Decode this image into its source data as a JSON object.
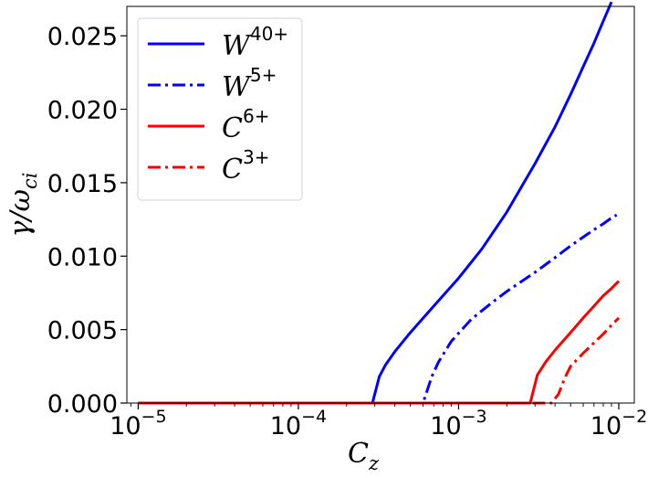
{
  "chart_data": {
    "type": "line",
    "xscale": "log",
    "xlim": [
      8.5e-06,
      0.0125
    ],
    "ylim": [
      0,
      0.027
    ],
    "xlabel": {
      "base": "C",
      "sub": "z"
    },
    "ylabel": {
      "text": "γ/ω",
      "sub": "ci"
    },
    "xticks": [
      {
        "value": 1e-05,
        "base": "10",
        "exp": "−5"
      },
      {
        "value": 0.0001,
        "base": "10",
        "exp": "−4"
      },
      {
        "value": 0.001,
        "base": "10",
        "exp": "−3"
      },
      {
        "value": 0.01,
        "base": "10",
        "exp": "−2"
      }
    ],
    "yticks": [
      "0.000",
      "0.005",
      "0.010",
      "0.015",
      "0.020",
      "0.025"
    ],
    "yticks_values": [
      0,
      0.005,
      0.01,
      0.015,
      0.02,
      0.025
    ],
    "legend_position": "top-left",
    "series": [
      {
        "name": "W",
        "sup": "40+",
        "color": "#0000ff",
        "style": "solid",
        "x": [
          1e-05,
          0.0001,
          0.00029,
          0.00032,
          0.00035,
          0.0004,
          0.0005,
          0.0007,
          0.001,
          0.0014,
          0.002,
          0.003,
          0.004,
          0.005,
          0.006,
          0.007,
          0.008,
          0.009
        ],
        "y": [
          0,
          0,
          0,
          0.0018,
          0.0026,
          0.0035,
          0.0048,
          0.0066,
          0.0085,
          0.0105,
          0.013,
          0.0163,
          0.0188,
          0.021,
          0.0229,
          0.0245,
          0.026,
          0.0273
        ]
      },
      {
        "name": "W",
        "sup": "5+",
        "color": "#0000ff",
        "style": "dashdot",
        "x": [
          1e-05,
          0.0001,
          0.0006,
          0.00068,
          0.00075,
          0.0009,
          0.0012,
          0.0016,
          0.002,
          0.003,
          0.004,
          0.005,
          0.006,
          0.007,
          0.008,
          0.009,
          0.0097
        ],
        "y": [
          0,
          0,
          0,
          0.0018,
          0.0028,
          0.0042,
          0.0057,
          0.0068,
          0.0076,
          0.0089,
          0.0099,
          0.0107,
          0.0113,
          0.0118,
          0.0122,
          0.0126,
          0.0128
        ]
      },
      {
        "name": "C",
        "sup": "6+",
        "color": "#ff0000",
        "style": "solid",
        "x": [
          1e-05,
          0.0001,
          0.0028,
          0.0031,
          0.0035,
          0.004,
          0.005,
          0.006,
          0.007,
          0.008,
          0.009,
          0.01
        ],
        "y": [
          0,
          0,
          0,
          0.0019,
          0.0028,
          0.0036,
          0.0048,
          0.0058,
          0.0066,
          0.0073,
          0.0078,
          0.0083
        ]
      },
      {
        "name": "C",
        "sup": "3+",
        "color": "#ff0000",
        "style": "dashdot",
        "x": [
          1e-05,
          0.0001,
          0.0038,
          0.0042,
          0.0046,
          0.005,
          0.006,
          0.007,
          0.008,
          0.009,
          0.01
        ],
        "y": [
          0,
          0,
          0,
          0.0006,
          0.0017,
          0.0025,
          0.0034,
          0.0041,
          0.0047,
          0.0053,
          0.0058
        ]
      }
    ]
  }
}
